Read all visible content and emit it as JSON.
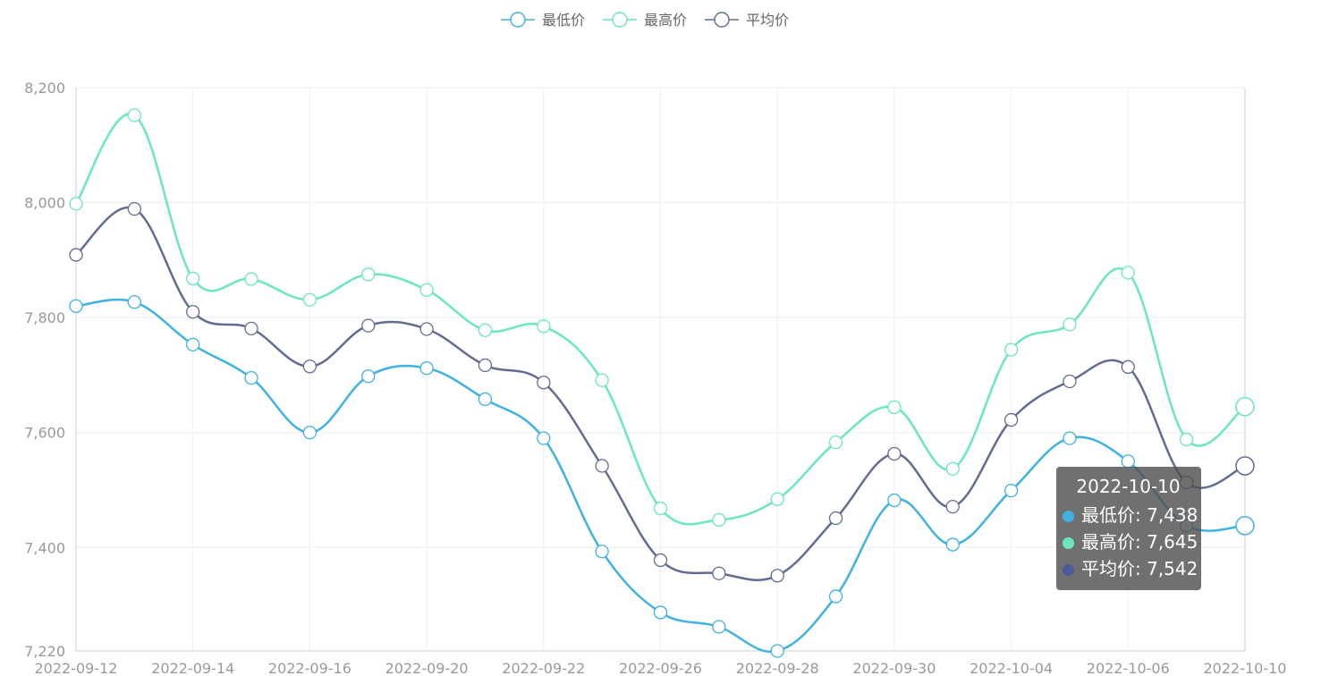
{
  "chart_data": {
    "type": "line",
    "smooth": true,
    "x": [
      "2022-09-12",
      "2022-09-13",
      "2022-09-14",
      "2022-09-15",
      "2022-09-16",
      "2022-09-19",
      "2022-09-20",
      "2022-09-21",
      "2022-09-22",
      "2022-09-23",
      "2022-09-26",
      "2022-09-27",
      "2022-09-28",
      "2022-09-29",
      "2022-09-30",
      "2022-10-03",
      "2022-10-04",
      "2022-10-05",
      "2022-10-06",
      "2022-10-07",
      "2022-10-10"
    ],
    "x_tick_labels": [
      "2022-09-12",
      "2022-09-14",
      "2022-09-16",
      "2022-09-20",
      "2022-09-22",
      "2022-09-26",
      "2022-09-28",
      "2022-09-30",
      "2022-10-04",
      "2022-10-06",
      "2022-10-10"
    ],
    "ylim": [
      7220,
      8200
    ],
    "y_ticks": [
      7220,
      7400,
      7600,
      7800,
      8000,
      8200
    ],
    "y_tick_labels": [
      "7,220",
      "7,400",
      "7,600",
      "7,800",
      "8,000",
      "8,200"
    ],
    "legend_position": "top-center",
    "grid": true,
    "series": [
      {
        "name": "最低价",
        "color": "#3fb1e3",
        "values": [
          7820,
          7827,
          7753,
          7695,
          7600,
          7698,
          7712,
          7658,
          7590,
          7393,
          7287,
          7262,
          7220,
          7315,
          7482,
          7405,
          7499,
          7590,
          7550,
          7438,
          7438
        ]
      },
      {
        "name": "最高价",
        "color": "#6be6c1",
        "values": [
          7998,
          8152,
          7868,
          7867,
          7831,
          7875,
          7848,
          7778,
          7785,
          7691,
          7468,
          7448,
          7484,
          7583,
          7644,
          7537,
          7744,
          7788,
          7878,
          7588,
          7645
        ]
      },
      {
        "name": "平均价",
        "color": "#626c91",
        "values": [
          7909,
          7989,
          7810,
          7781,
          7715,
          7786,
          7780,
          7717,
          7687,
          7542,
          7378,
          7355,
          7351,
          7451,
          7563,
          7471,
          7622,
          7689,
          7714,
          7513,
          7542
        ]
      }
    ]
  },
  "tooltip": {
    "title": "2022-10-10",
    "rows": [
      {
        "label": "最低价: 7,438",
        "color": "#3fb1e3"
      },
      {
        "label": "最高价: 7,645",
        "color": "#6be6c1"
      },
      {
        "label": "平均价: 7,542",
        "color": "#626c91"
      }
    ]
  }
}
